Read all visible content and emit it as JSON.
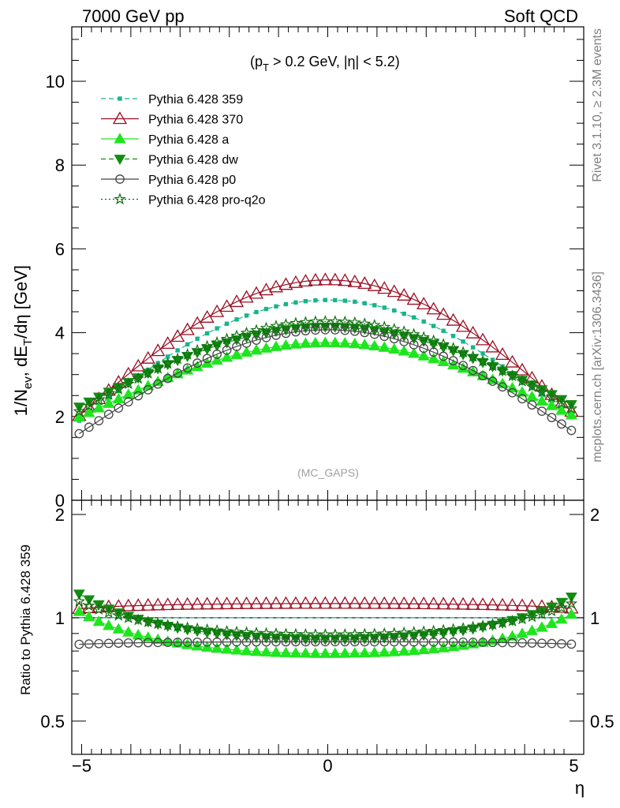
{
  "header": {
    "left": "7000 GeV pp",
    "right": "Soft QCD"
  },
  "side_labels": {
    "rivet": "Rivet 3.1.10, ≥ 2.3M events",
    "mcplots": "mcplots.cern.ch [arXiv:1306.3436]"
  },
  "main_plot": {
    "cut_label": "(p_T > 0.2 GeV, |η| < 5.2)",
    "ylabel": "1/N_ev, dE_T/dη [GeV]",
    "watermark": "(MC_GAPS)",
    "yticks": [
      "0",
      "2",
      "4",
      "6",
      "8",
      "10"
    ]
  },
  "ratio_plot": {
    "ylabel": "Ratio to Pythia 6.428 359",
    "yticks": [
      "0.5",
      "1",
      "2"
    ]
  },
  "x_axis": {
    "label": "η",
    "ticks": [
      "−5",
      "0",
      "5"
    ]
  },
  "colors": {
    "pythia_359": "#18b48a",
    "pythia_370": "#9b0f23",
    "pythia_a": "#1ee61e",
    "pythia_dw": "#128c12",
    "pythia_p0": "#444444",
    "pythia_proq2o": "#0e6e0e"
  },
  "chart_data": {
    "type": "line",
    "x_range": [
      -5.2,
      5.2
    ],
    "y_range_main": [
      0,
      11.3
    ],
    "y_range_ratio": [
      0.4,
      2.2
    ],
    "ratio_scale": "log",
    "x": "eta bin centres, -5.05 to 5.05 in steps of 0.2 (51 points)",
    "series": [
      {
        "name": "Pythia 6.428 359",
        "key": "pythia_359",
        "peak": 4.78,
        "edge": 1.9,
        "marker": "square",
        "line": "dashed"
      },
      {
        "name": "Pythia 6.428 370",
        "key": "pythia_370",
        "peak": 5.26,
        "edge": 2.02,
        "marker": "triangle-up-open",
        "line": "solid"
      },
      {
        "name": "Pythia 6.428 a",
        "key": "pythia_a",
        "peak": 3.76,
        "edge": 1.98,
        "marker": "triangle-up",
        "line": "solid"
      },
      {
        "name": "Pythia 6.428 dw",
        "key": "pythia_dw",
        "peak": 4.14,
        "edge": 2.23,
        "marker": "triangle-down",
        "line": "dashed"
      },
      {
        "name": "Pythia 6.428 p0",
        "key": "pythia_p0",
        "peak": 4.07,
        "edge": 1.59,
        "marker": "circle-open",
        "line": "solid"
      },
      {
        "name": "Pythia 6.428 pro-q2o",
        "key": "pythia_proq2o",
        "peak": 4.27,
        "edge": 2.12,
        "marker": "star-open",
        "line": "dotted"
      }
    ]
  }
}
